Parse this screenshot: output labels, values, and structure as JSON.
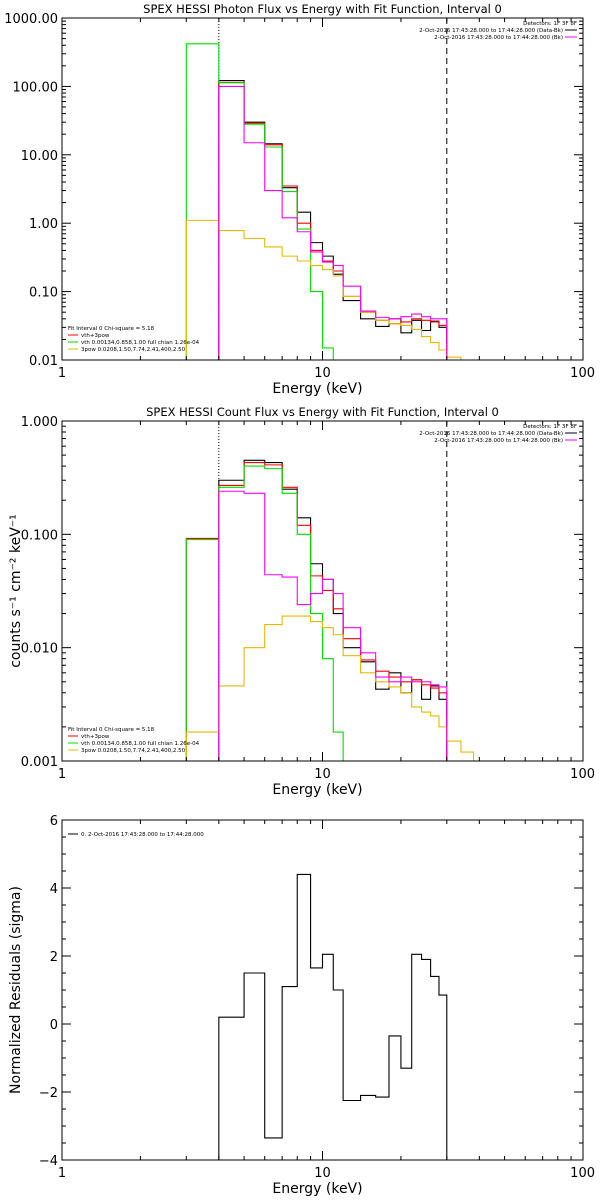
{
  "chart_data": [
    {
      "type": "line",
      "step": true,
      "title": "SPEX HESSI Photon Flux vs Energy with Fit Function, Interval 0",
      "xlabel": "Energy (keV)",
      "ylabel": "",
      "xscale": "log",
      "yscale": "log",
      "xlim": [
        1,
        100
      ],
      "ylim": [
        0.01,
        1000
      ],
      "xticks": [
        1,
        10,
        100
      ],
      "xtick_labels": [
        "1",
        "10",
        "100"
      ],
      "yticks": [
        0.01,
        0.1,
        1,
        10,
        100,
        1000
      ],
      "ytick_labels": [
        "0.01",
        "0.10",
        "1.00",
        "10.00",
        "100.00",
        "1000.00"
      ],
      "vlines": [
        {
          "x": 4,
          "style": "dotted"
        },
        {
          "x": 30,
          "style": "dashed"
        }
      ],
      "edges": [
        3,
        4,
        5,
        6,
        7,
        8,
        9,
        10,
        11,
        12,
        14,
        16,
        18,
        20,
        22,
        24,
        26,
        28,
        30,
        34
      ],
      "series": [
        {
          "name": "",
          "color": "#000000",
          "values": [
            null,
            122,
            30,
            14.5,
            3.3,
            1.45,
            0.52,
            0.33,
            0.18,
            0.074,
            0.04,
            0.031,
            0.04,
            0.025,
            0.038,
            0.027,
            0.037,
            0.03,
            null
          ]
        },
        {
          "name": "",
          "color": "#ff0000",
          "values": [
            null,
            115,
            29,
            14,
            3.5,
            1.0,
            0.4,
            0.28,
            0.2,
            0.085,
            0.05,
            0.038,
            0.034,
            0.036,
            0.04,
            0.038,
            0.036,
            0.032,
            null
          ]
        },
        {
          "name": "",
          "color": "#00dd00",
          "values": [
            420,
            113,
            28,
            13,
            2.9,
            0.82,
            0.1,
            0.015,
            null,
            null,
            null,
            null,
            null,
            null,
            null,
            null,
            null,
            null,
            null
          ]
        },
        {
          "name": "",
          "color": "#e6b800",
          "values": [
            1.1,
            0.78,
            0.6,
            0.45,
            0.33,
            0.28,
            0.24,
            0.21,
            0.17,
            0.085,
            0.05,
            0.038,
            0.034,
            0.032,
            0.028,
            0.022,
            0.018,
            0.014,
            0.011
          ]
        },
        {
          "name": "",
          "color": "#ff00ff",
          "values": [
            null,
            100,
            15,
            3.0,
            1.2,
            0.75,
            0.38,
            0.27,
            0.24,
            0.12,
            0.052,
            0.042,
            0.04,
            0.043,
            0.047,
            0.043,
            0.04,
            0.04,
            null
          ]
        }
      ],
      "legend_topright": {
        "detectors": "Detectors: 1F 3F 8F",
        "lines": [
          {
            "text": "2-Oct-2016 17:43:28.000 to 17:44:28.000 (Data-Bk)",
            "color": "#000000"
          },
          {
            "text": "2-Oct-2016 17:43:28.000 to 17:44:28.000 (Bk)",
            "color": "#ff00ff"
          }
        ]
      },
      "legend_bottomleft": {
        "header": "Fit Interval 0   Chi-square = 5.18",
        "lines": [
          {
            "text": "vth+3pow",
            "color": "#ff0000"
          },
          {
            "text": "vth 0.00134,0.858,1.00  full chian 1.26e-04",
            "color": "#00dd00"
          },
          {
            "text": "3pow 0.0208,1.50,7.74,2.41,400,2.50",
            "color": "#e6b800"
          }
        ]
      }
    },
    {
      "type": "line",
      "step": true,
      "title": "SPEX HESSI Count Flux vs Energy with Fit Function, Interval 0",
      "xlabel": "Energy (keV)",
      "ylabel": "counts s⁻¹ cm⁻² keV⁻¹",
      "xscale": "log",
      "yscale": "log",
      "xlim": [
        1,
        100
      ],
      "ylim": [
        0.001,
        1
      ],
      "xticks": [
        1,
        10,
        100
      ],
      "xtick_labels": [
        "1",
        "10",
        "100"
      ],
      "yticks": [
        0.001,
        0.01,
        0.1,
        1
      ],
      "ytick_labels": [
        "0.001",
        "0.010",
        "0.100",
        "1.000"
      ],
      "vlines": [
        {
          "x": 4,
          "style": "dotted"
        },
        {
          "x": 30,
          "style": "dashed"
        }
      ],
      "edges": [
        3,
        4,
        5,
        6,
        7,
        8,
        9,
        10,
        11,
        12,
        14,
        16,
        18,
        20,
        22,
        24,
        26,
        28,
        30,
        34,
        38
      ],
      "series": [
        {
          "name": "",
          "color": "#000000",
          "values": [
            null,
            0.3,
            0.45,
            0.43,
            0.25,
            0.14,
            0.055,
            0.04,
            0.02,
            0.01,
            0.0075,
            0.0043,
            0.006,
            0.004,
            0.0052,
            0.0035,
            0.0046,
            0.0035,
            null,
            null
          ]
        },
        {
          "name": "",
          "color": "#ff0000",
          "values": [
            0.092,
            0.27,
            0.43,
            0.41,
            0.26,
            0.12,
            0.043,
            0.032,
            0.022,
            0.012,
            0.0078,
            0.0062,
            0.0055,
            0.005,
            0.0052,
            0.0047,
            0.0044,
            0.004,
            null,
            null
          ]
        },
        {
          "name": "",
          "color": "#00dd00",
          "values": [
            0.09,
            0.26,
            0.4,
            0.38,
            0.23,
            0.1,
            0.02,
            0.008,
            0.0018,
            null,
            null,
            null,
            null,
            null,
            null,
            null,
            null,
            null,
            null,
            null
          ]
        },
        {
          "name": "",
          "color": "#e6b800",
          "values": [
            0.0018,
            0.0046,
            0.01,
            0.016,
            0.019,
            0.019,
            0.017,
            0.015,
            0.013,
            0.0085,
            0.006,
            0.005,
            0.0045,
            0.004,
            0.003,
            0.0027,
            0.0025,
            0.002,
            0.0015,
            0.0012
          ]
        },
        {
          "name": "",
          "color": "#ff00ff",
          "values": [
            null,
            0.24,
            0.23,
            0.044,
            0.042,
            0.024,
            0.03,
            0.04,
            0.03,
            0.015,
            0.009,
            0.0055,
            0.005,
            0.0055,
            0.005,
            0.005,
            0.0047,
            0.0045,
            null,
            null
          ]
        }
      ],
      "legend_topright": {
        "detectors": "Detectors: 1F 3F 8F",
        "lines": [
          {
            "text": "2-Oct-2016 17:43:28.000 to 17:44:28.000 (Data-Bk)",
            "color": "#000000"
          },
          {
            "text": "2-Oct-2016 17:43:28.000 to 17:44:28.000 (Bk)",
            "color": "#ff00ff"
          }
        ]
      },
      "legend_bottomleft": {
        "header": "Fit Interval 0   Chi-square = 5.18",
        "lines": [
          {
            "text": "vth+3pow",
            "color": "#ff0000"
          },
          {
            "text": "vth 0.00134,0.858,1.00  full chian 1.26e-04",
            "color": "#00dd00"
          },
          {
            "text": "3pow 0.0208,1.50,7.74,2.41,400,2.50",
            "color": "#e6b800"
          }
        ]
      }
    },
    {
      "type": "line",
      "step": true,
      "title": "",
      "xlabel": "Energy (keV)",
      "ylabel": "Normalized Residuals (sigma)",
      "xscale": "log",
      "yscale": "linear",
      "xlim": [
        1,
        100
      ],
      "ylim": [
        -4,
        6
      ],
      "xticks": [
        1,
        10,
        100
      ],
      "xtick_labels": [
        "1",
        "10",
        "100"
      ],
      "yticks": [
        -4,
        -2,
        0,
        2,
        4,
        6
      ],
      "ytick_labels": [
        "−4",
        "−2",
        "0",
        "2",
        "4",
        "6"
      ],
      "vlines": [],
      "edges": [
        4,
        5,
        6,
        7,
        8,
        9,
        10,
        11,
        12,
        14,
        16,
        18,
        20,
        22,
        24,
        26,
        28,
        30
      ],
      "series": [
        {
          "name": "",
          "color": "#000000",
          "values": [
            0.2,
            1.5,
            -3.35,
            1.1,
            4.4,
            1.65,
            2.05,
            1.0,
            -2.25,
            -2.1,
            -2.15,
            -0.35,
            -1.3,
            2.05,
            1.9,
            1.4,
            0.85
          ]
        }
      ],
      "legend_topleft": {
        "lines": [
          {
            "text": "0.  2-Oct-2016 17:43:28.000 to 17:44:28.000",
            "color": "#000000"
          }
        ]
      }
    }
  ]
}
